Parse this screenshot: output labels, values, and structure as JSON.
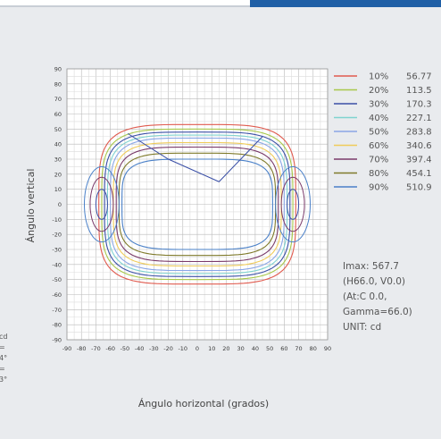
{
  "chart_data": {
    "type": "line",
    "title": "",
    "xlabel": "Ángulo horizontal (grados)",
    "ylabel": "Ángulo vertical",
    "xlim": [
      -90,
      90
    ],
    "ylim": [
      -90,
      90
    ],
    "x_ticks": [
      -90,
      -80,
      -70,
      -60,
      -50,
      -40,
      -30,
      -20,
      -10,
      0,
      10,
      20,
      30,
      40,
      50,
      60,
      70,
      80,
      90
    ],
    "y_ticks": [
      90,
      80,
      70,
      60,
      50,
      40,
      30,
      20,
      10,
      0,
      -10,
      -20,
      -30,
      -40,
      -50,
      -60,
      -70,
      -80,
      -90
    ],
    "grid": true,
    "legend_position": "right",
    "series": [
      {
        "name": "10%",
        "value": "56.77",
        "color": "#e05a4e",
        "rx": 68,
        "ry": 53
      },
      {
        "name": "20%",
        "value": "113.5",
        "color": "#a8c84a",
        "rx": 66,
        "ry": 50
      },
      {
        "name": "30%",
        "value": "170.3",
        "color": "#3a4fa6",
        "rx": 64,
        "ry": 48
      },
      {
        "name": "40%",
        "value": "227.1",
        "color": "#7fd3d0",
        "rx": 62,
        "ry": 46
      },
      {
        "name": "50%",
        "value": "283.8",
        "color": "#8aa6e6",
        "rx": 60,
        "ry": 44
      },
      {
        "name": "60%",
        "value": "340.6",
        "color": "#f0cc5a",
        "rx": 58,
        "ry": 41
      },
      {
        "name": "70%",
        "value": "397.4",
        "color": "#7a3a6a",
        "rx": 56,
        "ry": 38
      },
      {
        "name": "80%",
        "value": "454.1",
        "color": "#7f7a2a",
        "rx": 54,
        "ry": 34
      },
      {
        "name": "90%",
        "value": "510.9",
        "color": "#4a80c8",
        "rx": 52,
        "ry": 30
      }
    ],
    "info": [
      "Imax: 567.7",
      "(H66.0, V0.0)",
      "(At:C 0.0,",
      "Gamma=66.0)",
      "UNIT: cd"
    ],
    "left_fragments": [
      "cd",
      "=",
      "4°",
      "=",
      "3°"
    ]
  }
}
